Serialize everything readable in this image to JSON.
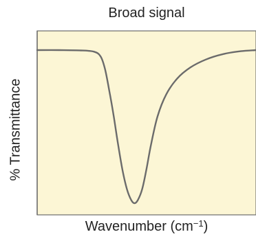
{
  "chart_data": {
    "type": "line",
    "title": "Broad signal",
    "xlabel_main": "Wavenumber (cm",
    "xlabel_sup": "−1",
    "xlabel_close": ")",
    "ylabel": "% Transmittance",
    "x_axis_reversed": true,
    "ylim": [
      0,
      100
    ],
    "xlim": [
      0,
      100
    ],
    "grid": false,
    "colors": {
      "plot_background": "#fcf6d5",
      "frame": "#6b6b6b",
      "line": "#6b6b6b"
    },
    "series": [
      {
        "points": [
          {
            "x": 0,
            "y": 100
          },
          {
            "x": 10,
            "y": 100
          },
          {
            "x": 20,
            "y": 99.8
          },
          {
            "x": 26,
            "y": 99
          },
          {
            "x": 29,
            "y": 96
          },
          {
            "x": 31,
            "y": 88
          },
          {
            "x": 33,
            "y": 74
          },
          {
            "x": 35,
            "y": 58
          },
          {
            "x": 37,
            "y": 40
          },
          {
            "x": 39,
            "y": 24
          },
          {
            "x": 41,
            "y": 12
          },
          {
            "x": 43,
            "y": 5
          },
          {
            "x": 44.5,
            "y": 3
          },
          {
            "x": 46,
            "y": 5
          },
          {
            "x": 48,
            "y": 12
          },
          {
            "x": 50,
            "y": 25
          },
          {
            "x": 52,
            "y": 40
          },
          {
            "x": 55,
            "y": 58
          },
          {
            "x": 59,
            "y": 72
          },
          {
            "x": 64,
            "y": 82
          },
          {
            "x": 70,
            "y": 89
          },
          {
            "x": 77,
            "y": 94
          },
          {
            "x": 85,
            "y": 97.5
          },
          {
            "x": 93,
            "y": 99.3
          },
          {
            "x": 100,
            "y": 100
          }
        ]
      }
    ]
  }
}
